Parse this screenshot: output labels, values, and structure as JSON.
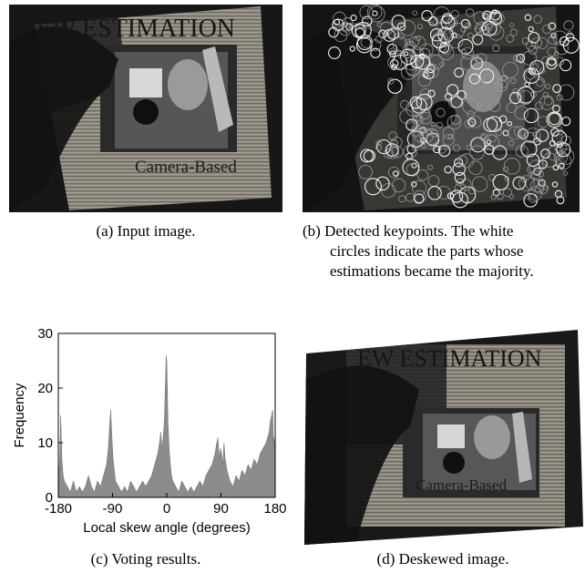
{
  "panels": {
    "a": {
      "caption": "(a) Input image.",
      "photo_heading": "EW ESTIMATION",
      "photo_label": "Camera-Based"
    },
    "b": {
      "caption_lines": [
        "(b) Detected keypoints. The white",
        "circles indicate the parts whose",
        "estimations became the majority."
      ]
    },
    "c": {
      "caption": "(c) Voting results."
    },
    "d": {
      "caption": "(d) Deskewed image.",
      "photo_heading": "EW ESTIMATION",
      "photo_label": "Camera-Based"
    }
  },
  "chart_data": {
    "type": "area",
    "title": "",
    "xlabel": "Local skew angle (degrees)",
    "ylabel": "Frequency",
    "xlim": [
      -180,
      180
    ],
    "ylim": [
      0,
      30
    ],
    "xticks": [
      -180,
      -90,
      0,
      90,
      180
    ],
    "yticks": [
      0,
      10,
      20,
      30
    ],
    "fill_color": "#8c8c8c",
    "grid": false,
    "series": [
      {
        "x": [
          -180,
          -178,
          -176,
          -174,
          -172,
          -170,
          -165,
          -160,
          -155,
          -150,
          -145,
          -140,
          -135,
          -130,
          -125,
          -120,
          -115,
          -110,
          -105,
          -100,
          -97,
          -95,
          -93,
          -91,
          -89,
          -87,
          -85,
          -80,
          -75,
          -70,
          -65,
          -60,
          -55,
          -50,
          -45,
          -40,
          -35,
          -30,
          -25,
          -20,
          -15,
          -12,
          -10,
          -8,
          -6,
          -4,
          -3,
          -2,
          -1,
          0,
          1,
          2,
          4,
          6,
          8,
          10,
          15,
          20,
          25,
          30,
          35,
          40,
          45,
          50,
          55,
          60,
          65,
          70,
          75,
          80,
          83,
          85,
          87,
          89,
          91,
          93,
          95,
          97,
          100,
          105,
          110,
          115,
          120,
          125,
          130,
          135,
          140,
          145,
          150,
          155,
          160,
          165,
          170,
          172,
          174,
          176,
          177,
          178,
          180
        ],
        "values": [
          5,
          6,
          15,
          7,
          4,
          3,
          2,
          1,
          3,
          1,
          2,
          1,
          2,
          4,
          2,
          1,
          3,
          2,
          4,
          6,
          9,
          13,
          16,
          11,
          7,
          5,
          3,
          2,
          1,
          2,
          1,
          3,
          2,
          1,
          2,
          3,
          2,
          3,
          4,
          6,
          8,
          10,
          12,
          9,
          11,
          14,
          18,
          22,
          26,
          25,
          20,
          14,
          9,
          6,
          4,
          3,
          2,
          1,
          3,
          2,
          1,
          2,
          1,
          2,
          3,
          2,
          4,
          5,
          6,
          8,
          10,
          11,
          7,
          9,
          8,
          6,
          10,
          7,
          5,
          3,
          2,
          4,
          3,
          5,
          4,
          6,
          5,
          7,
          6,
          8,
          9,
          10,
          12,
          14,
          15,
          16,
          10,
          11,
          8
        ]
      }
    ]
  }
}
